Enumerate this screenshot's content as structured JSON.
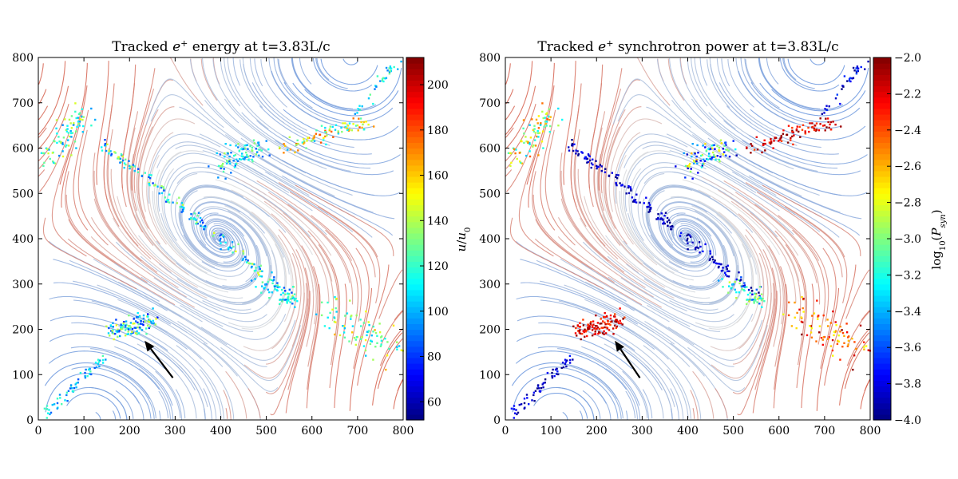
{
  "chart_data": [
    {
      "type": "scatter",
      "title_prefix": "Tracked",
      "title_particle": "e",
      "title_sup": "+",
      "title_suffix": "energy at t=3.83L/c",
      "xlim": [
        0,
        800
      ],
      "ylim": [
        0,
        800
      ],
      "xticks": [
        "0",
        "100",
        "200",
        "300",
        "400",
        "500",
        "600",
        "700",
        "800"
      ],
      "yticks": [
        "0",
        "100",
        "200",
        "300",
        "400",
        "500",
        "600",
        "700",
        "800"
      ],
      "colorbar": {
        "label": "u/u0",
        "range": [
          52,
          212
        ],
        "ticks": [
          "60",
          "80",
          "100",
          "120",
          "140",
          "160",
          "180",
          "200"
        ],
        "tick_values": [
          60,
          80,
          100,
          120,
          140,
          160,
          180,
          200
        ]
      },
      "arrow": {
        "from": [
          295,
          93
        ],
        "to": [
          233,
          175
        ]
      },
      "clusters": [
        {
          "name": "bottom-left-filament",
          "from": [
            10,
            12
          ],
          "to": [
            150,
            140
          ],
          "n": 60,
          "spread": 5,
          "value_range": [
            85,
            125
          ]
        },
        {
          "name": "x-point-lower",
          "from": [
            160,
            195
          ],
          "to": [
            260,
            220
          ],
          "n": 110,
          "spread": 10,
          "value_range": [
            75,
            150
          ]
        },
        {
          "name": "current-sheet",
          "from": [
            140,
            610
          ],
          "to": [
            560,
            270
          ],
          "n": 170,
          "spread": 6,
          "value_range": [
            80,
            150
          ]
        },
        {
          "name": "island-right",
          "from": [
            490,
            300
          ],
          "to": [
            560,
            260
          ],
          "n": 60,
          "spread": 10,
          "value_range": [
            80,
            130
          ]
        },
        {
          "name": "top-left-group",
          "from": [
            20,
            570
          ],
          "to": [
            100,
            680
          ],
          "n": 80,
          "spread": 14,
          "value_range": [
            90,
            150
          ]
        },
        {
          "name": "top-middle-group",
          "from": [
            400,
            560
          ],
          "to": [
            490,
            610
          ],
          "n": 90,
          "spread": 14,
          "value_range": [
            85,
            140
          ]
        },
        {
          "name": "top-right-filament",
          "from": [
            540,
            600
          ],
          "to": [
            720,
            660
          ],
          "n": 90,
          "spread": 9,
          "value_range": [
            100,
            180
          ]
        },
        {
          "name": "top-right-tail",
          "from": [
            700,
            680
          ],
          "to": [
            790,
            790
          ],
          "n": 35,
          "spread": 6,
          "value_range": [
            90,
            130
          ]
        },
        {
          "name": "right-scatter",
          "from": [
            640,
            240
          ],
          "to": [
            790,
            150
          ],
          "n": 90,
          "spread": 22,
          "value_range": [
            100,
            165
          ]
        }
      ]
    },
    {
      "type": "scatter",
      "title_prefix": "Tracked",
      "title_particle": "e",
      "title_sup": "+",
      "title_suffix": "synchrotron power at t=3.83L/c",
      "xlim": [
        0,
        800
      ],
      "ylim": [
        0,
        800
      ],
      "xticks": [
        "0",
        "100",
        "200",
        "300",
        "400",
        "500",
        "600",
        "700",
        "800"
      ],
      "yticks": [
        "0",
        "100",
        "200",
        "300",
        "400",
        "500",
        "600",
        "700",
        "800"
      ],
      "colorbar": {
        "label": "log10(Psyn)",
        "range": [
          -4.0,
          -2.0
        ],
        "ticks": [
          "−4.0",
          "−3.8",
          "−3.6",
          "−3.4",
          "−3.2",
          "−3.0",
          "−2.8",
          "−2.6",
          "−2.4",
          "−2.2",
          "−2.0"
        ],
        "tick_values": [
          -4.0,
          -3.8,
          -3.6,
          -3.4,
          -3.2,
          -3.0,
          -2.8,
          -2.6,
          -2.4,
          -2.2,
          -2.0
        ]
      },
      "arrow": {
        "from": [
          295,
          93
        ],
        "to": [
          240,
          175
        ]
      },
      "clusters": [
        {
          "name": "bottom-left-filament",
          "from": [
            10,
            12
          ],
          "to": [
            150,
            140
          ],
          "n": 60,
          "spread": 5,
          "value_range": [
            -4.0,
            -3.7
          ]
        },
        {
          "name": "x-point-lower",
          "from": [
            160,
            195
          ],
          "to": [
            260,
            220
          ],
          "n": 110,
          "spread": 10,
          "value_range": [
            -2.4,
            -2.0
          ]
        },
        {
          "name": "current-sheet",
          "from": [
            140,
            610
          ],
          "to": [
            560,
            270
          ],
          "n": 170,
          "spread": 6,
          "value_range": [
            -4.0,
            -3.7
          ]
        },
        {
          "name": "island-right",
          "from": [
            490,
            300
          ],
          "to": [
            560,
            260
          ],
          "n": 60,
          "spread": 10,
          "value_range": [
            -3.7,
            -2.8
          ]
        },
        {
          "name": "top-left-group",
          "from": [
            20,
            570
          ],
          "to": [
            100,
            680
          ],
          "n": 80,
          "spread": 14,
          "value_range": [
            -3.4,
            -2.4
          ]
        },
        {
          "name": "top-middle-group",
          "from": [
            400,
            560
          ],
          "to": [
            490,
            610
          ],
          "n": 90,
          "spread": 14,
          "value_range": [
            -3.9,
            -2.6
          ]
        },
        {
          "name": "top-right-filament",
          "from": [
            540,
            600
          ],
          "to": [
            720,
            660
          ],
          "n": 90,
          "spread": 9,
          "value_range": [
            -2.4,
            -2.0
          ]
        },
        {
          "name": "top-right-tail",
          "from": [
            700,
            680
          ],
          "to": [
            790,
            790
          ],
          "n": 35,
          "spread": 6,
          "value_range": [
            -4.0,
            -3.6
          ]
        },
        {
          "name": "right-scatter",
          "from": [
            640,
            240
          ],
          "to": [
            790,
            150
          ],
          "n": 90,
          "spread": 22,
          "value_range": [
            -2.8,
            -2.0
          ]
        }
      ]
    }
  ]
}
